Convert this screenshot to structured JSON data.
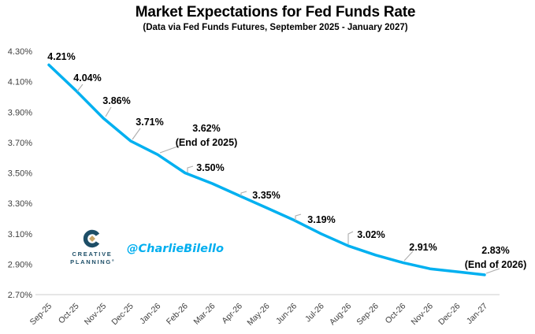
{
  "chart_data": {
    "type": "line",
    "title": "Market Expectations for Fed Funds Rate",
    "subtitle": "(Data via Fed Funds Futures, September 2025 - January 2027)",
    "categories": [
      "Sep-25",
      "Oct-25",
      "Nov-25",
      "Dec-25",
      "Jan-26",
      "Feb-26",
      "Mar-26",
      "Apr-26",
      "May-26",
      "Jun-26",
      "Jul-26",
      "Aug-26",
      "Sep-26",
      "Oct-26",
      "Nov-26",
      "Dec-26",
      "Jan-27"
    ],
    "values": [
      4.21,
      4.04,
      3.86,
      3.71,
      3.62,
      3.5,
      3.43,
      3.35,
      3.27,
      3.19,
      3.1,
      3.02,
      2.96,
      2.91,
      2.87,
      2.85,
      2.83
    ],
    "labeled_points": [
      {
        "index": 0,
        "text": "4.21%"
      },
      {
        "index": 1,
        "text": "4.04%"
      },
      {
        "index": 2,
        "text": "3.86%"
      },
      {
        "index": 3,
        "text": "3.71%"
      },
      {
        "index": 4,
        "text": "3.62%",
        "text2": "(End of 2025)"
      },
      {
        "index": 5,
        "text": "3.50%"
      },
      {
        "index": 7,
        "text": "3.35%"
      },
      {
        "index": 9,
        "text": "3.19%"
      },
      {
        "index": 11,
        "text": "3.02%"
      },
      {
        "index": 13,
        "text": "2.91%"
      },
      {
        "index": 16,
        "text": "2.83%",
        "text2": "(End of 2026)"
      }
    ],
    "y_ticks": [
      "4.30%",
      "4.10%",
      "3.90%",
      "3.70%",
      "3.50%",
      "3.30%",
      "3.10%",
      "2.90%",
      "2.70%"
    ],
    "ylim": [
      2.7,
      4.3
    ],
    "line_color": "#00b0f0",
    "leader_color": "#adadad",
    "axis_color": "#d6d6d6",
    "tick_text_color": "#3f3f3f",
    "grid": false,
    "legend": false
  },
  "watermark": {
    "handle": "@CharlieBilello",
    "color": "#00aeef"
  },
  "logo": {
    "line1": "CREATIVE",
    "line2": "PLANNING",
    "trademark": "®",
    "navy": "#1d4e67",
    "gold": "#c7a566"
  }
}
